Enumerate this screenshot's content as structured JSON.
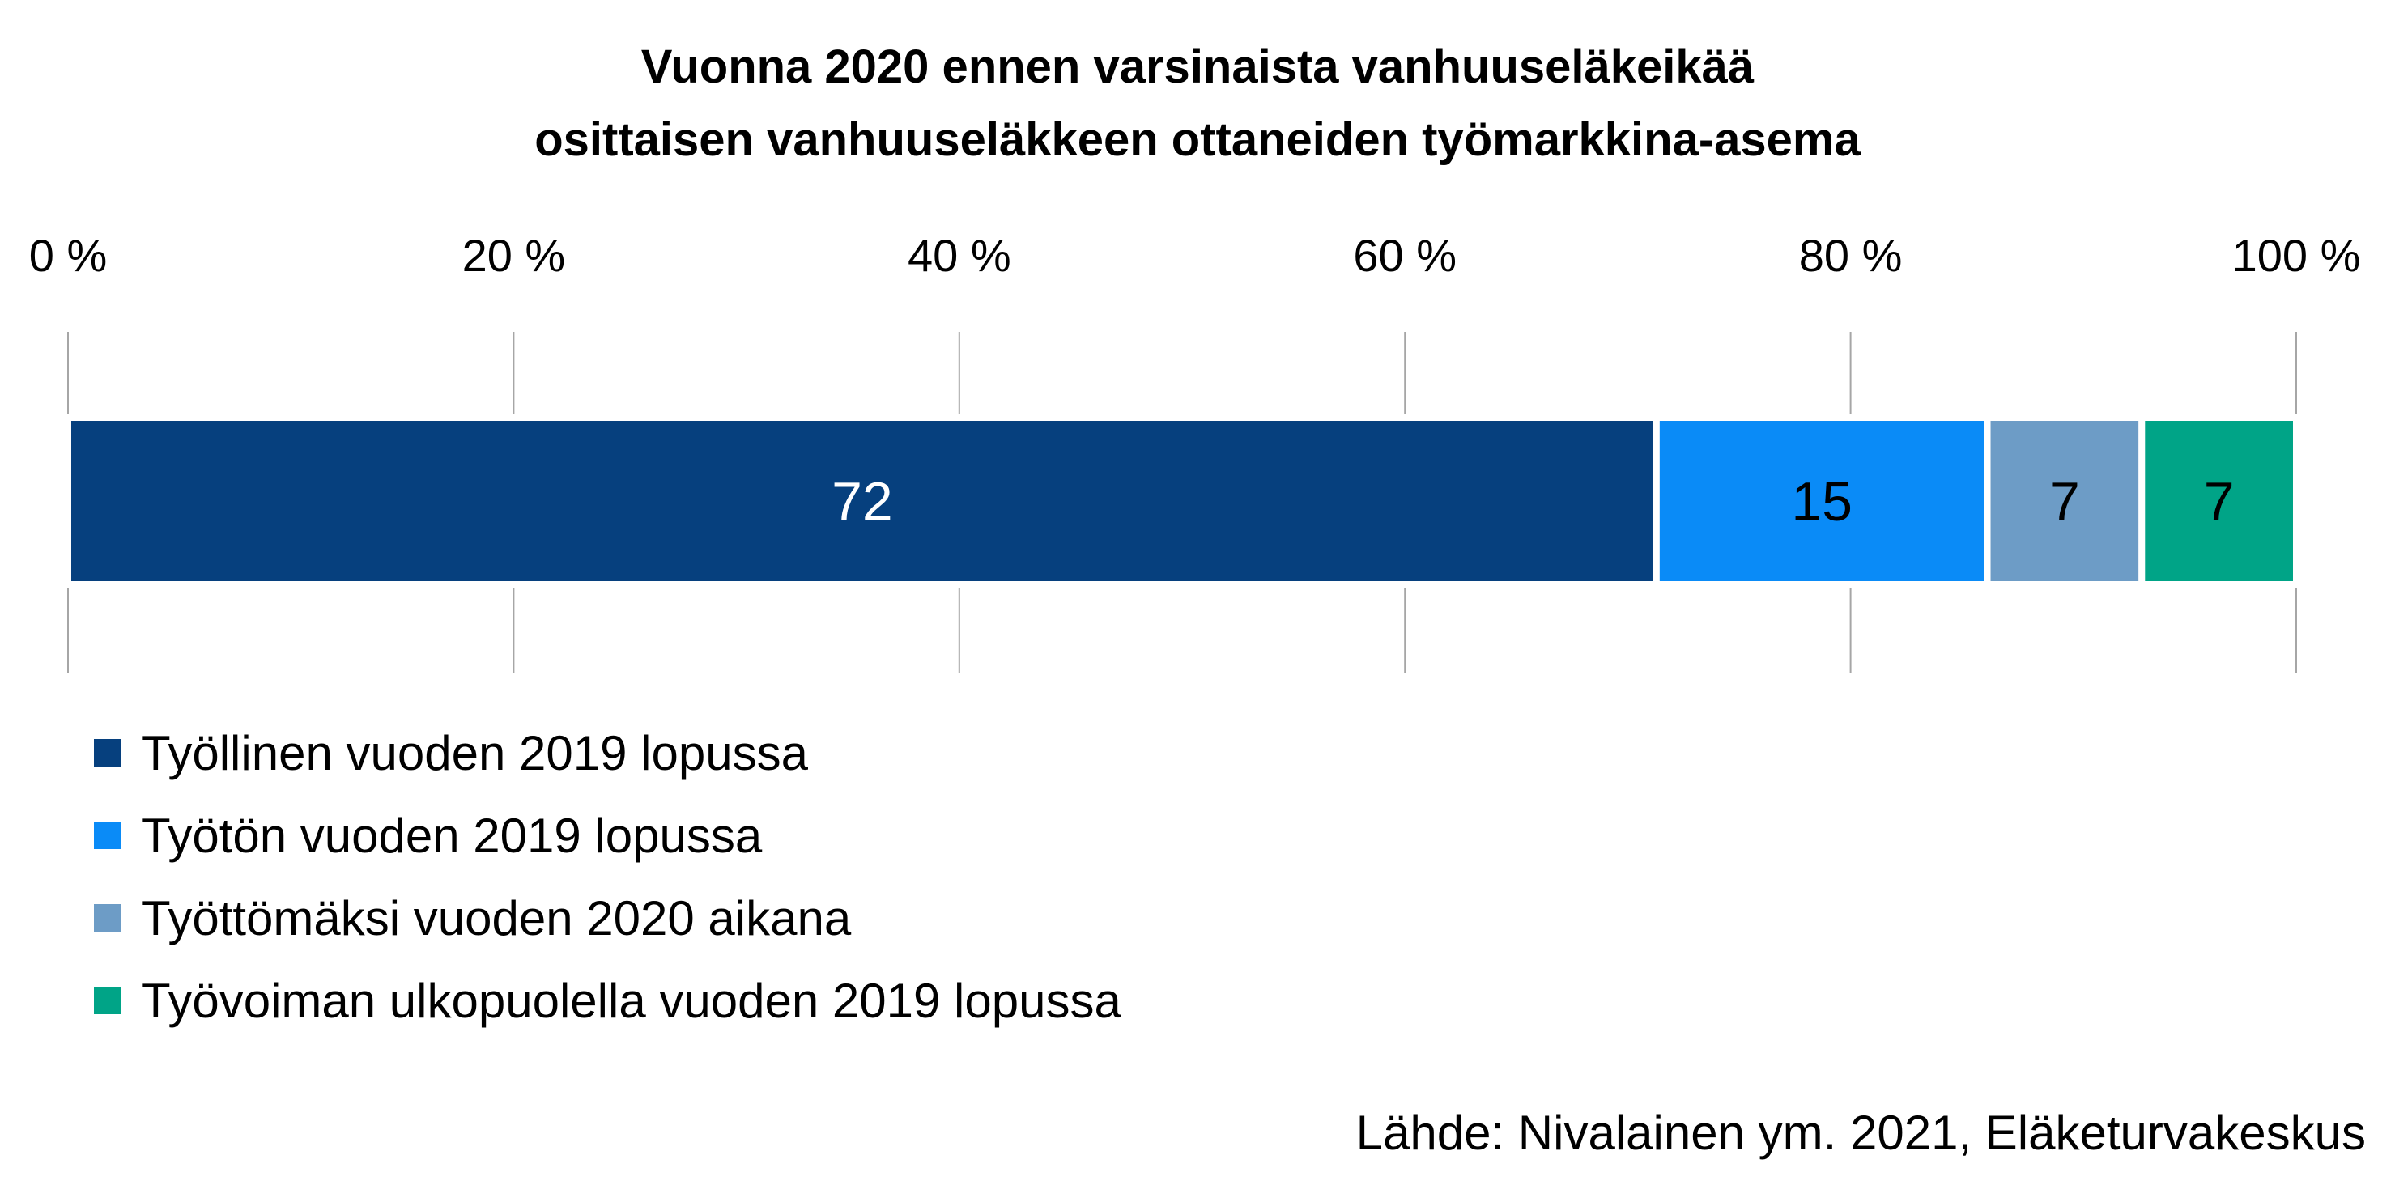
{
  "chart_data": {
    "type": "bar",
    "orientation": "horizontal",
    "stacked": "percent",
    "title_lines": [
      "Vuonna 2020 ennen varsinaista vanhuuseläkeikää",
      "osittaisen vanhuuseläkkeen ottaneiden työmarkkina-asema"
    ],
    "xlim": [
      0,
      100
    ],
    "x_ticks": [
      0,
      20,
      40,
      60,
      80,
      100
    ],
    "x_tick_labels": [
      "0 %",
      "20 %",
      "40 %",
      "60 %",
      "80 %",
      "100 %"
    ],
    "x_axis_position": "top",
    "grid": true,
    "legend_position": "bottom",
    "series": [
      {
        "name": "Työllinen vuoden 2019 lopussa",
        "value": 72,
        "label": "72",
        "color": "#06407e",
        "label_color": "#ffffff"
      },
      {
        "name": "Työtön vuoden 2019 lopussa",
        "value": 15,
        "label": "15",
        "color": "#0a8bf7",
        "label_color": "#000000"
      },
      {
        "name": "Työttömäksi vuoden 2020 aikana",
        "value": 7,
        "label": "7",
        "color": "#6d9cc6",
        "label_color": "#000000"
      },
      {
        "name": "Työvoiman ulkopuolella vuoden 2019 lopussa",
        "value": 7,
        "label": "7",
        "color": "#00a487",
        "label_color": "#000000"
      }
    ]
  },
  "source": "Lähde: Nivalainen ym. 2021, Eläketurvakeskus"
}
